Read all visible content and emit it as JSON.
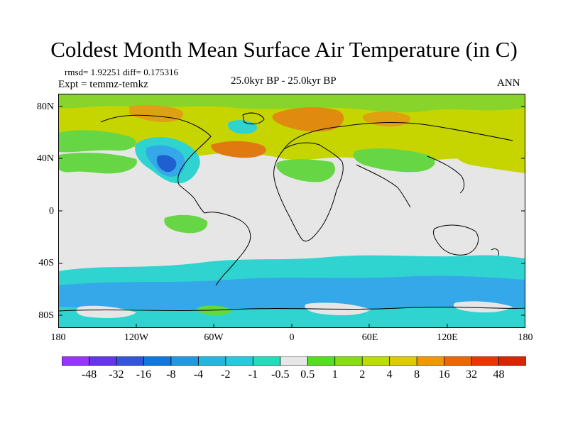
{
  "title": "Coldest Month Mean Surface Air Temperature (in C)",
  "stats": "rmsd= 1.92251 diff= 0.175316",
  "experiment": "Expt = temmz-temkz",
  "period": "25.0kyr BP - 25.0kyr BP",
  "season": "ANN",
  "lat_labels": [
    "80N",
    "40N",
    "0",
    "40S",
    "80S"
  ],
  "lon_labels": [
    "180",
    "120W",
    "60W",
    "0",
    "60E",
    "120E",
    "180"
  ],
  "colorbar": {
    "labels": [
      "-48",
      "-32",
      "-16",
      "-8",
      "-4",
      "-2",
      "-1",
      "-0.5",
      "0.5",
      "1",
      "2",
      "4",
      "8",
      "16",
      "32",
      "48"
    ],
    "colors": [
      "#9933ff",
      "#6633ee",
      "#3355dd",
      "#1177dd",
      "#2299dd",
      "#22b7dd",
      "#22ccdd",
      "#22ddbb",
      "#e6e6e6",
      "#55dd22",
      "#88dd11",
      "#bbdd00",
      "#ddcc00",
      "#ee9900",
      "#ee6600",
      "#ee3300",
      "#dd2200"
    ]
  },
  "colors": {
    "neutral": "#e6e6e6",
    "warm_yellow": "#c6d400",
    "warm_orange": "#e08a10",
    "green": "#66d644",
    "cool_cyan": "#2fd3d0",
    "cool_blue": "#34a8e8",
    "dark_blue": "#1f5fd0"
  }
}
